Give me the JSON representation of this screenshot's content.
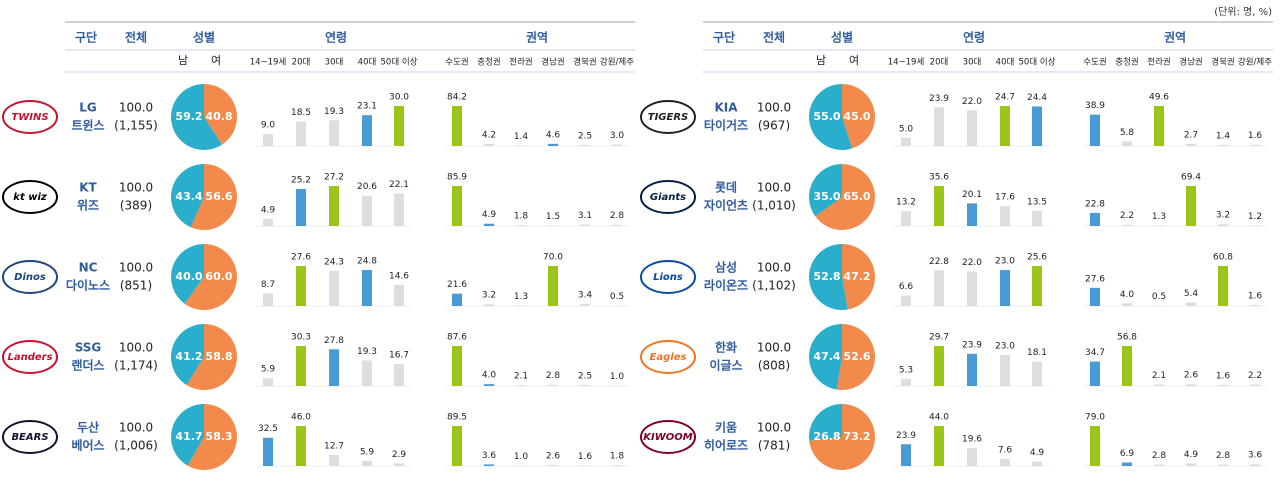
{
  "unit": "(단위: 명, %)",
  "header": {
    "team": "구단",
    "total": "전체",
    "gender": "성별",
    "age": "연령",
    "region": "권역"
  },
  "gender_labels": [
    "남",
    "여"
  ],
  "age_labels": [
    "14~19세",
    "20대",
    "30대",
    "40대",
    "50대 이상"
  ],
  "region_labels": [
    "수도권",
    "충청권",
    "전라권",
    "경남권",
    "경북권",
    "강원/제주"
  ],
  "colors": {
    "male": "#2aaecb",
    "female": "#f28a4c",
    "first": "#9dc41a",
    "second": "#4a9bd4",
    "other": "#dedede",
    "header": "#2f5c9e"
  },
  "teams": [
    {
      "logo": "TWINS",
      "logo_color": "#c4122f",
      "name": [
        "LG",
        "트윈스"
      ],
      "total": "100.0",
      "count": "(1,155)",
      "gender": [
        59.2,
        40.8
      ],
      "gender_value_labels": [
        "59.2",
        "40.8"
      ],
      "age": [
        9.0,
        18.5,
        19.3,
        23.1,
        30.0
      ],
      "age_value_labels": [
        "9.0",
        "18.5",
        "19.3",
        "23.1",
        "30.0"
      ],
      "region": [
        84.2,
        4.2,
        1.4,
        4.6,
        2.5,
        3.0
      ],
      "region_value_labels": [
        "84.2",
        "4.2",
        "1.4",
        "4.6",
        "2.5",
        "3.0"
      ]
    },
    {
      "logo": "kt wiz",
      "logo_color": "#000000",
      "name": [
        "KT",
        "위즈"
      ],
      "total": "100.0",
      "count": "(389)",
      "gender": [
        43.4,
        56.6
      ],
      "gender_value_labels": [
        "43.4",
        "56.6"
      ],
      "age": [
        4.9,
        25.2,
        27.2,
        20.6,
        22.1
      ],
      "age_value_labels": [
        "4.9",
        "25.2",
        "27.2",
        "20.6",
        "22.1"
      ],
      "region": [
        85.9,
        4.9,
        1.8,
        1.5,
        3.1,
        2.8
      ],
      "region_value_labels": [
        "85.9",
        "4.9",
        "1.8",
        "1.5",
        "3.1",
        "2.8"
      ]
    },
    {
      "logo": "Dinos",
      "logo_color": "#1d467f",
      "name": [
        "NC",
        "다이노스"
      ],
      "total": "100.0",
      "count": "(851)",
      "gender": [
        40.0,
        60.0
      ],
      "gender_value_labels": [
        "40.0",
        "60.0"
      ],
      "age": [
        8.7,
        27.6,
        24.3,
        24.8,
        14.6
      ],
      "age_value_labels": [
        "8.7",
        "27.6",
        "24.3",
        "24.8",
        "14.6"
      ],
      "region": [
        21.6,
        3.2,
        1.3,
        70.0,
        3.4,
        0.5
      ],
      "region_value_labels": [
        "21.6",
        "3.2",
        "1.3",
        "70.0",
        "3.4",
        "0.5"
      ]
    },
    {
      "logo": "Landers",
      "logo_color": "#ce0e2d",
      "name": [
        "SSG",
        "랜더스"
      ],
      "total": "100.0",
      "count": "(1,174)",
      "gender": [
        41.2,
        58.8
      ],
      "gender_value_labels": [
        "41.2",
        "58.8"
      ],
      "age": [
        5.9,
        30.3,
        27.8,
        19.3,
        16.7
      ],
      "age_value_labels": [
        "5.9",
        "30.3",
        "27.8",
        "19.3",
        "16.7"
      ],
      "region": [
        87.6,
        4.0,
        2.1,
        2.8,
        2.5,
        1.0
      ],
      "region_value_labels": [
        "87.6",
        "4.0",
        "2.1",
        "2.8",
        "2.5",
        "1.0"
      ]
    },
    {
      "logo": "BEARS",
      "logo_color": "#131230",
      "name": [
        "두산",
        "베어스"
      ],
      "total": "100.0",
      "count": "(1,006)",
      "gender": [
        41.7,
        58.3
      ],
      "gender_value_labels": [
        "41.7",
        "58.3"
      ],
      "age": [
        32.5,
        46.0,
        12.7,
        5.9,
        2.9
      ],
      "age_value_labels": [
        "32.5",
        "46.0",
        "12.7",
        "5.9",
        "2.9"
      ],
      "region": [
        89.5,
        3.6,
        1.0,
        2.6,
        1.6,
        1.8
      ],
      "region_value_labels": [
        "89.5",
        "3.6",
        "1.0",
        "2.6",
        "1.6",
        "1.8"
      ]
    },
    {
      "logo": "TIGERS",
      "logo_color": "#231f20",
      "name": [
        "KIA",
        "타이거즈"
      ],
      "total": "100.0",
      "count": "(967)",
      "gender": [
        55.0,
        45.0
      ],
      "gender_value_labels": [
        "55.0",
        "45.0"
      ],
      "age": [
        5.0,
        23.9,
        22.0,
        24.7,
        24.4
      ],
      "age_value_labels": [
        "5.0",
        "23.9",
        "22.0",
        "24.7",
        "24.4"
      ],
      "region": [
        38.9,
        5.8,
        49.6,
        2.7,
        1.4,
        1.6
      ],
      "region_value_labels": [
        "38.9",
        "5.8",
        "49.6",
        "2.7",
        "1.4",
        "1.6"
      ]
    },
    {
      "logo": "Giants",
      "logo_color": "#041e42",
      "name": [
        "롯데",
        "자이언츠"
      ],
      "total": "100.0",
      "count": "(1,010)",
      "gender": [
        35.0,
        65.0
      ],
      "gender_value_labels": [
        "35.0",
        "65.0"
      ],
      "age": [
        13.2,
        35.6,
        20.1,
        17.6,
        13.5
      ],
      "age_value_labels": [
        "13.2",
        "35.6",
        "20.1",
        "17.6",
        "13.5"
      ],
      "region": [
        22.8,
        2.2,
        1.3,
        69.4,
        3.2,
        1.2
      ],
      "region_value_labels": [
        "22.8",
        "2.2",
        "1.3",
        "69.4",
        "3.2",
        "1.2"
      ]
    },
    {
      "logo": "Lions",
      "logo_color": "#074ca1",
      "name": [
        "삼성",
        "라이온즈"
      ],
      "total": "100.0",
      "count": "(1,102)",
      "gender": [
        52.8,
        47.2
      ],
      "gender_value_labels": [
        "52.8",
        "47.2"
      ],
      "age": [
        6.6,
        22.8,
        22.0,
        23.0,
        25.6
      ],
      "age_value_labels": [
        "6.6",
        "22.8",
        "22.0",
        "23.0",
        "25.6"
      ],
      "region": [
        27.6,
        4.0,
        0.5,
        5.4,
        60.8,
        1.6
      ],
      "region_value_labels": [
        "27.6",
        "4.0",
        "0.5",
        "5.4",
        "60.8",
        "1.6"
      ]
    },
    {
      "logo": "Eagles",
      "logo_color": "#f37321",
      "name": [
        "한화",
        "이글스"
      ],
      "total": "100.0",
      "count": "(808)",
      "gender": [
        47.4,
        52.6
      ],
      "gender_value_labels": [
        "47.4",
        "52.6"
      ],
      "age": [
        5.3,
        29.7,
        23.9,
        23.0,
        18.1
      ],
      "age_value_labels": [
        "5.3",
        "29.7",
        "23.9",
        "23.0",
        "18.1"
      ],
      "region": [
        34.7,
        56.8,
        2.1,
        2.6,
        1.6,
        2.2
      ],
      "region_value_labels": [
        "34.7",
        "56.8",
        "2.1",
        "2.6",
        "1.6",
        "2.2"
      ]
    },
    {
      "logo": "KIWOOM",
      "logo_color": "#820024",
      "name": [
        "키움",
        "히어로즈"
      ],
      "total": "100.0",
      "count": "(781)",
      "gender": [
        26.8,
        73.2
      ],
      "gender_value_labels": [
        "26.8",
        "73.2"
      ],
      "age": [
        23.9,
        44.0,
        19.6,
        7.6,
        4.9
      ],
      "age_value_labels": [
        "23.9",
        "44.0",
        "19.6",
        "7.6",
        "4.9"
      ],
      "region": [
        79.0,
        6.9,
        2.8,
        4.9,
        2.8,
        3.6
      ],
      "region_value_labels": [
        "79.0",
        "6.9",
        "2.8",
        "4.9",
        "2.8",
        "3.6"
      ]
    }
  ]
}
